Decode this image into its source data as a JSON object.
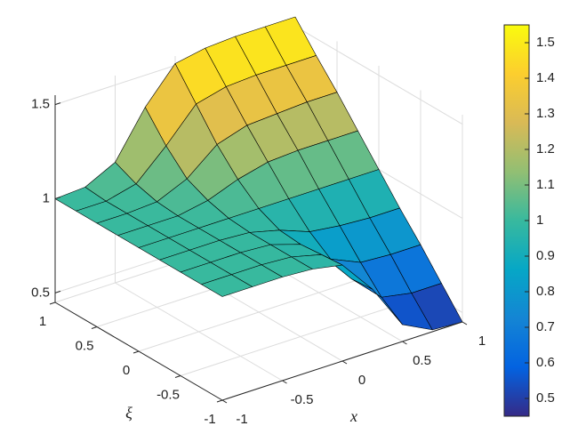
{
  "chart_data": {
    "type": "surface",
    "xlabel": "x",
    "ylabel": "ξ",
    "x": [
      -1,
      -0.75,
      -0.5,
      -0.25,
      0,
      0.25,
      0.5,
      0.75,
      1
    ],
    "y": [
      -1,
      -0.75,
      -0.5,
      -0.25,
      0,
      0.25,
      0.5,
      0.75,
      1
    ],
    "z": [
      [
        1,
        1,
        1,
        0.99,
        0.96,
        0.78,
        0.54,
        0.46,
        0.45
      ],
      [
        1,
        1,
        1,
        0.99,
        0.95,
        0.77,
        0.62,
        0.59,
        0.59
      ],
      [
        1,
        1,
        1,
        0.99,
        0.94,
        0.81,
        0.74,
        0.73,
        0.73
      ],
      [
        1,
        1,
        1,
        0.99,
        0.95,
        0.89,
        0.87,
        0.86,
        0.86
      ],
      [
        1,
        1,
        1,
        1,
        1,
        1,
        1,
        1,
        1
      ],
      [
        1,
        1,
        1,
        1.03,
        1.09,
        1.13,
        1.14,
        1.14,
        1.14
      ],
      [
        1,
        1,
        1.01,
        1.08,
        1.21,
        1.26,
        1.27,
        1.28,
        1.28
      ],
      [
        1,
        1,
        1.04,
        1.19,
        1.36,
        1.4,
        1.41,
        1.41,
        1.41
      ],
      [
        1,
        1.01,
        1.09,
        1.33,
        1.51,
        1.54,
        1.55,
        1.55,
        1.55
      ]
    ],
    "xlim": [
      -1,
      1
    ],
    "ylim": [
      -1,
      1
    ],
    "zlim": [
      0.45,
      1.55
    ],
    "xticks": [
      -1,
      -0.5,
      0,
      0.5,
      1
    ],
    "yticks": [
      -1,
      -0.5,
      0,
      0.5,
      1
    ],
    "zticks": [
      0.5,
      1,
      1.5
    ],
    "grid": true,
    "edge_color": "#000000",
    "colormap": [
      "#352a87",
      "#0363e1",
      "#1485d4",
      "#06a7c6",
      "#38b99e",
      "#92bf73",
      "#d9ba56",
      "#fcce2e",
      "#f9fb0e"
    ],
    "clim": [
      0.45,
      1.55
    ],
    "colorbar_ticks": [
      0.5,
      0.6,
      0.7,
      0.8,
      0.9,
      1,
      1.1,
      1.2,
      1.3,
      1.4,
      1.5
    ]
  }
}
